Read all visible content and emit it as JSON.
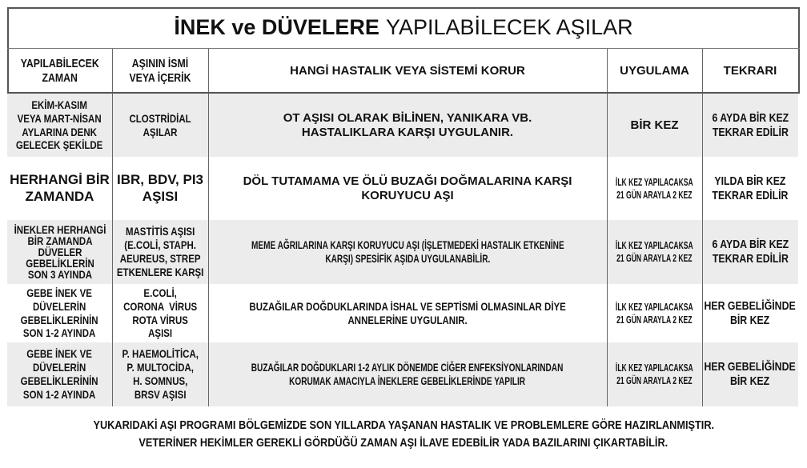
{
  "title": {
    "bold": "İNEK ve DÜVELERE",
    "regular": "YAPILABİLECEK AŞILAR"
  },
  "headers": [
    "YAPILABİLECEK\nZAMAN",
    "AŞININ İSMİ\nVEYA İÇERİK",
    "HANGİ HASTALIK VEYA SİSTEMİ KORUR",
    "UYGULAMA",
    "TEKRARI"
  ],
  "rows": [
    {
      "zaman": "EKİM-KASIM\nVEYA MART-NİSAN\nAYLARINA DENK\nGELECEK ŞEKİLDE",
      "asi": "CLOSTRİDİAL\nAŞILAR",
      "korur": "OT AŞISI OLARAK BİLİNEN, YANIKARA VB.\nHASTALIKLARA KARŞI UYGULANIR.",
      "uygulama": "BİR KEZ",
      "tekrar": "6 AYDA BİR KEZ\nTEKRAR EDİLİR"
    },
    {
      "zaman": "HERHANGİ BİR\nZAMANDA",
      "asi": "IBR, BDV, PI3\nAŞISI",
      "korur": "DÖL TUTAMAMA VE ÖLÜ BUZAĞI DOĞMALARINA KARŞI\nKORUYUCU AŞI",
      "uygulama": "İLK KEZ YAPILACAKSA\n21 GÜN ARAYLA 2 KEZ",
      "tekrar": "YILDA BİR KEZ\nTEKRAR EDİLİR"
    },
    {
      "zaman": "İNEKLER HERHANGİ\nBİR ZAMANDA\nDÜVELER\nGEBELİKLERİN\nSON 3 AYINDA",
      "asi": "MASTİTİS AŞISI\n(E.COLİ, STAPH.\nAEUREUS, STREP\nETKENLERE KARŞI",
      "korur": "MEME AĞRILARINA KARŞI KORUYUCU AŞI (İŞLETMEDEKİ HASTALIK ETKENİNE\nKARŞI) SPESİFİK AŞIDA UYGULANABİLİR.",
      "uygulama": "İLK KEZ YAPILACAKSA\n21 GÜN ARAYLA 2 KEZ",
      "tekrar": "6 AYDA BİR KEZ\nTEKRAR EDİLİR"
    },
    {
      "zaman": "GEBE İNEK VE\nDÜVELERİN\nGEBELİKLERİNİN\nSON 1-2 AYINDA",
      "asi": "E.COLİ,\nCORONA  VİRUS\nROTA VİRUS\nAŞISI",
      "korur": "BUZAĞILAR DOĞDUKLARINDA İSHAL VE SEPTİSMİ OLMASINLAR DİYE\nANNELERİNE UYGULANIR.",
      "uygulama": "İLK KEZ YAPILACAKSA\n21 GÜN ARAYLA 2 KEZ",
      "tekrar": "HER GEBELİĞİNDE\nBİR KEZ"
    },
    {
      "zaman": "GEBE İNEK VE\nDÜVELERİN\nGEBELİKLERİNİN\nSON 1-2 AYINDA",
      "asi": "P. HAEMOLİTİCA,\nP. MULTOCİDA,\nH. SOMNUS,\nBRSV AŞISI",
      "korur": "BUZAĞILAR DOĞDUKLARI 1-2 AYLIK DÖNEMDE CİĞER ENFEKSİYONLARINDAN\nKORUMAK AMACIYLA İNEKLERE GEBELİKLERİNDE YAPILIR",
      "uygulama": "İLK KEZ YAPILACAKSA\n21 GÜN ARAYLA 2 KEZ",
      "tekrar": "HER GEBELİĞİNDE\nBİR KEZ"
    }
  ],
  "footer": [
    "YUKARIDAKİ AŞI PROGRAMI BÖLGEMİZDE SON YILLARDA YAŞANAN HASTALIK VE PROBLEMLERE GÖRE HAZIRLANMIŞTIR.",
    "VETERİNER HEKİMLER GEREKLİ GÖRDÜĞÜ ZAMAN AŞI İLAVE EDEBİLİR YADA BAZILARINI ÇIKARTABİLİR."
  ],
  "colors": {
    "row_alt": "#ececec",
    "border": "#555555"
  }
}
